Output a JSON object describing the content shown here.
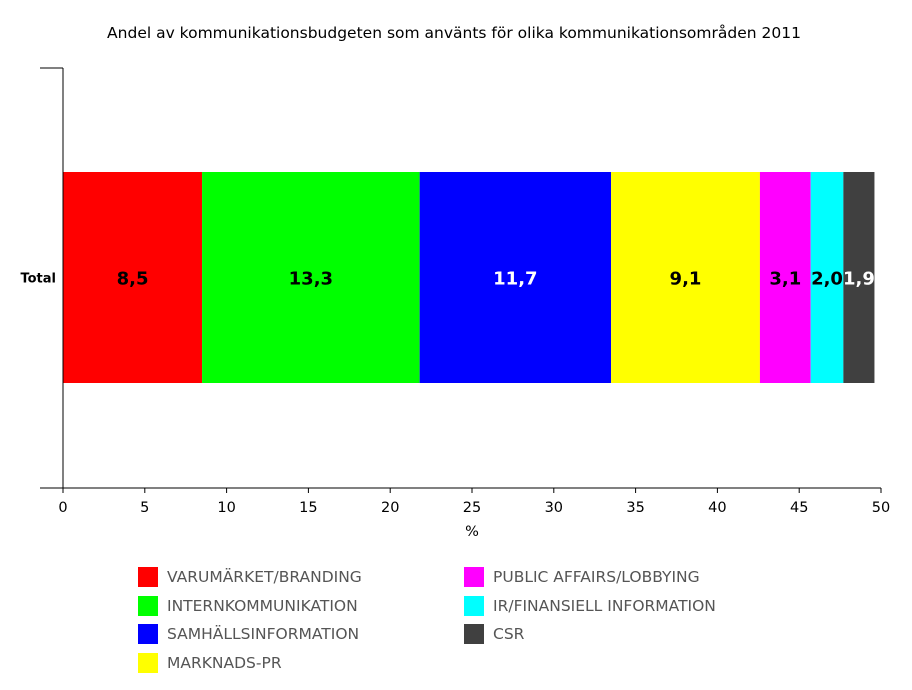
{
  "chart_data": {
    "type": "bar",
    "orientation": "horizontal",
    "stacked": true,
    "title": "Andel av kommunikationsbudgeten som använts för olika kommunikationsområden 2011",
    "xlabel": "%",
    "ylabel": "",
    "categories": [
      "Total"
    ],
    "xlim": [
      0,
      50
    ],
    "xticks": [
      "0",
      "5",
      "10",
      "15",
      "20",
      "25",
      "30",
      "35",
      "40",
      "45",
      "50"
    ],
    "grid": false,
    "legend_position": "bottom",
    "series": [
      {
        "name": "VARUMÄRKET/BRANDING",
        "values": [
          8.5
        ],
        "label": "8,5",
        "color": "#ff0000",
        "label_color": "#000000"
      },
      {
        "name": "INTERNKOMMUNIKATION",
        "values": [
          13.3
        ],
        "label": "13,3",
        "color": "#00ff00",
        "label_color": "#000000"
      },
      {
        "name": "SAMHÄLLSINFORMATION",
        "values": [
          11.7
        ],
        "label": "11,7",
        "color": "#0000ff",
        "label_color": "#ffffff"
      },
      {
        "name": "MARKNADS-PR",
        "values": [
          9.1
        ],
        "label": "9,1",
        "color": "#ffff00",
        "label_color": "#000000"
      },
      {
        "name": "PUBLIC AFFAIRS/LOBBYING",
        "values": [
          3.1
        ],
        "label": "3,1",
        "color": "#ff00ff",
        "label_color": "#000000"
      },
      {
        "name": "IR/FINANSIELL INFORMATION",
        "values": [
          2.0
        ],
        "label": "2,0",
        "color": "#00ffff",
        "label_color": "#000000"
      },
      {
        "name": "CSR",
        "values": [
          1.9
        ],
        "label": "1,9",
        "color": "#404040",
        "label_color": "#ffffff"
      }
    ]
  }
}
